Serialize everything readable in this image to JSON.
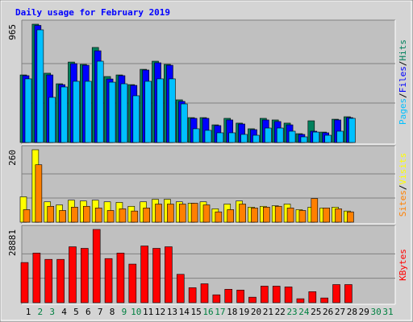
{
  "title": "Daily usage for February 2019",
  "categories": [
    "1",
    "2",
    "3",
    "4",
    "5",
    "6",
    "7",
    "8",
    "9",
    "10",
    "11",
    "12",
    "13",
    "14",
    "15",
    "16",
    "17",
    "18",
    "19",
    "20",
    "21",
    "22",
    "23",
    "24",
    "25",
    "26",
    "27",
    "28",
    "29",
    "30",
    "31"
  ],
  "category_colors": [
    "#000000",
    "#008040",
    "#008040",
    "#000000",
    "#000000",
    "#000000",
    "#000000",
    "#000000",
    "#008040",
    "#008040",
    "#000000",
    "#000000",
    "#000000",
    "#000000",
    "#000000",
    "#008040",
    "#008040",
    "#000000",
    "#000000",
    "#000000",
    "#000000",
    "#000000",
    "#008040",
    "#008040",
    "#000000",
    "#000000",
    "#000000",
    "#000000",
    "#000000",
    "#008040",
    "#008040"
  ],
  "separator": "/",
  "chart_data": [
    {
      "type": "bar",
      "ylim": [
        0,
        965
      ],
      "yticks": [
        965
      ],
      "series": [
        {
          "name": "Hits",
          "color": "#00805c",
          "values": [
            551,
            965,
            565,
            479,
            656,
            637,
            775,
            538,
            551,
            472,
            597,
            663,
            637,
            348,
            203,
            203,
            144,
            197,
            158,
            112,
            197,
            184,
            158,
            72,
            177,
            85,
            190,
            210,
            0,
            0,
            0
          ]
        },
        {
          "name": "Files",
          "color": "#0000ff",
          "values": [
            545,
            955,
            551,
            472,
            643,
            630,
            748,
            518,
            545,
            466,
            591,
            650,
            630,
            335,
            197,
            197,
            138,
            184,
            151,
            105,
            184,
            171,
            144,
            66,
            92,
            79,
            184,
            203,
            0,
            0,
            0
          ]
        },
        {
          "name": "Pages",
          "color": "#00c0ff",
          "values": [
            519,
            919,
            368,
            453,
            499,
            499,
            663,
            492,
            479,
            381,
            499,
            519,
            519,
            315,
            112,
            99,
            79,
            79,
            66,
            59,
            118,
            118,
            92,
            46,
            85,
            59,
            92,
            197,
            0,
            0,
            0
          ]
        }
      ]
    },
    {
      "type": "bar",
      "ylim": [
        0,
        260
      ],
      "yticks": [
        260
      ],
      "series": [
        {
          "name": "Visits",
          "color": "#ffff00",
          "values": [
            91,
            260,
            73,
            62,
            79,
            76,
            79,
            73,
            71,
            57,
            73,
            82,
            82,
            73,
            68,
            73,
            48,
            65,
            76,
            54,
            57,
            59,
            65,
            45,
            54,
            51,
            54,
            40,
            0,
            0,
            0
          ]
        },
        {
          "name": "Sites",
          "color": "#ff8000",
          "values": [
            45,
            206,
            57,
            42,
            54,
            57,
            51,
            42,
            48,
            40,
            51,
            65,
            65,
            65,
            68,
            62,
            37,
            45,
            65,
            51,
            54,
            57,
            51,
            42,
            85,
            51,
            48,
            37,
            0,
            0,
            0
          ]
        }
      ]
    },
    {
      "type": "bar",
      "ylim": [
        0,
        28881
      ],
      "yticks": [
        28881
      ],
      "series": [
        {
          "name": "KBytes",
          "color": "#ff0000",
          "values": [
            15837,
            19563,
            17080,
            17080,
            22047,
            21425,
            28881,
            17390,
            19563,
            15216,
            22357,
            21425,
            22047,
            11179,
            5900,
            7452,
            3105,
            5279,
            4968,
            2174,
            6521,
            6521,
            6210,
            1553,
            4347,
            1863,
            7142,
            7142,
            0,
            0,
            0
          ]
        }
      ]
    }
  ]
}
